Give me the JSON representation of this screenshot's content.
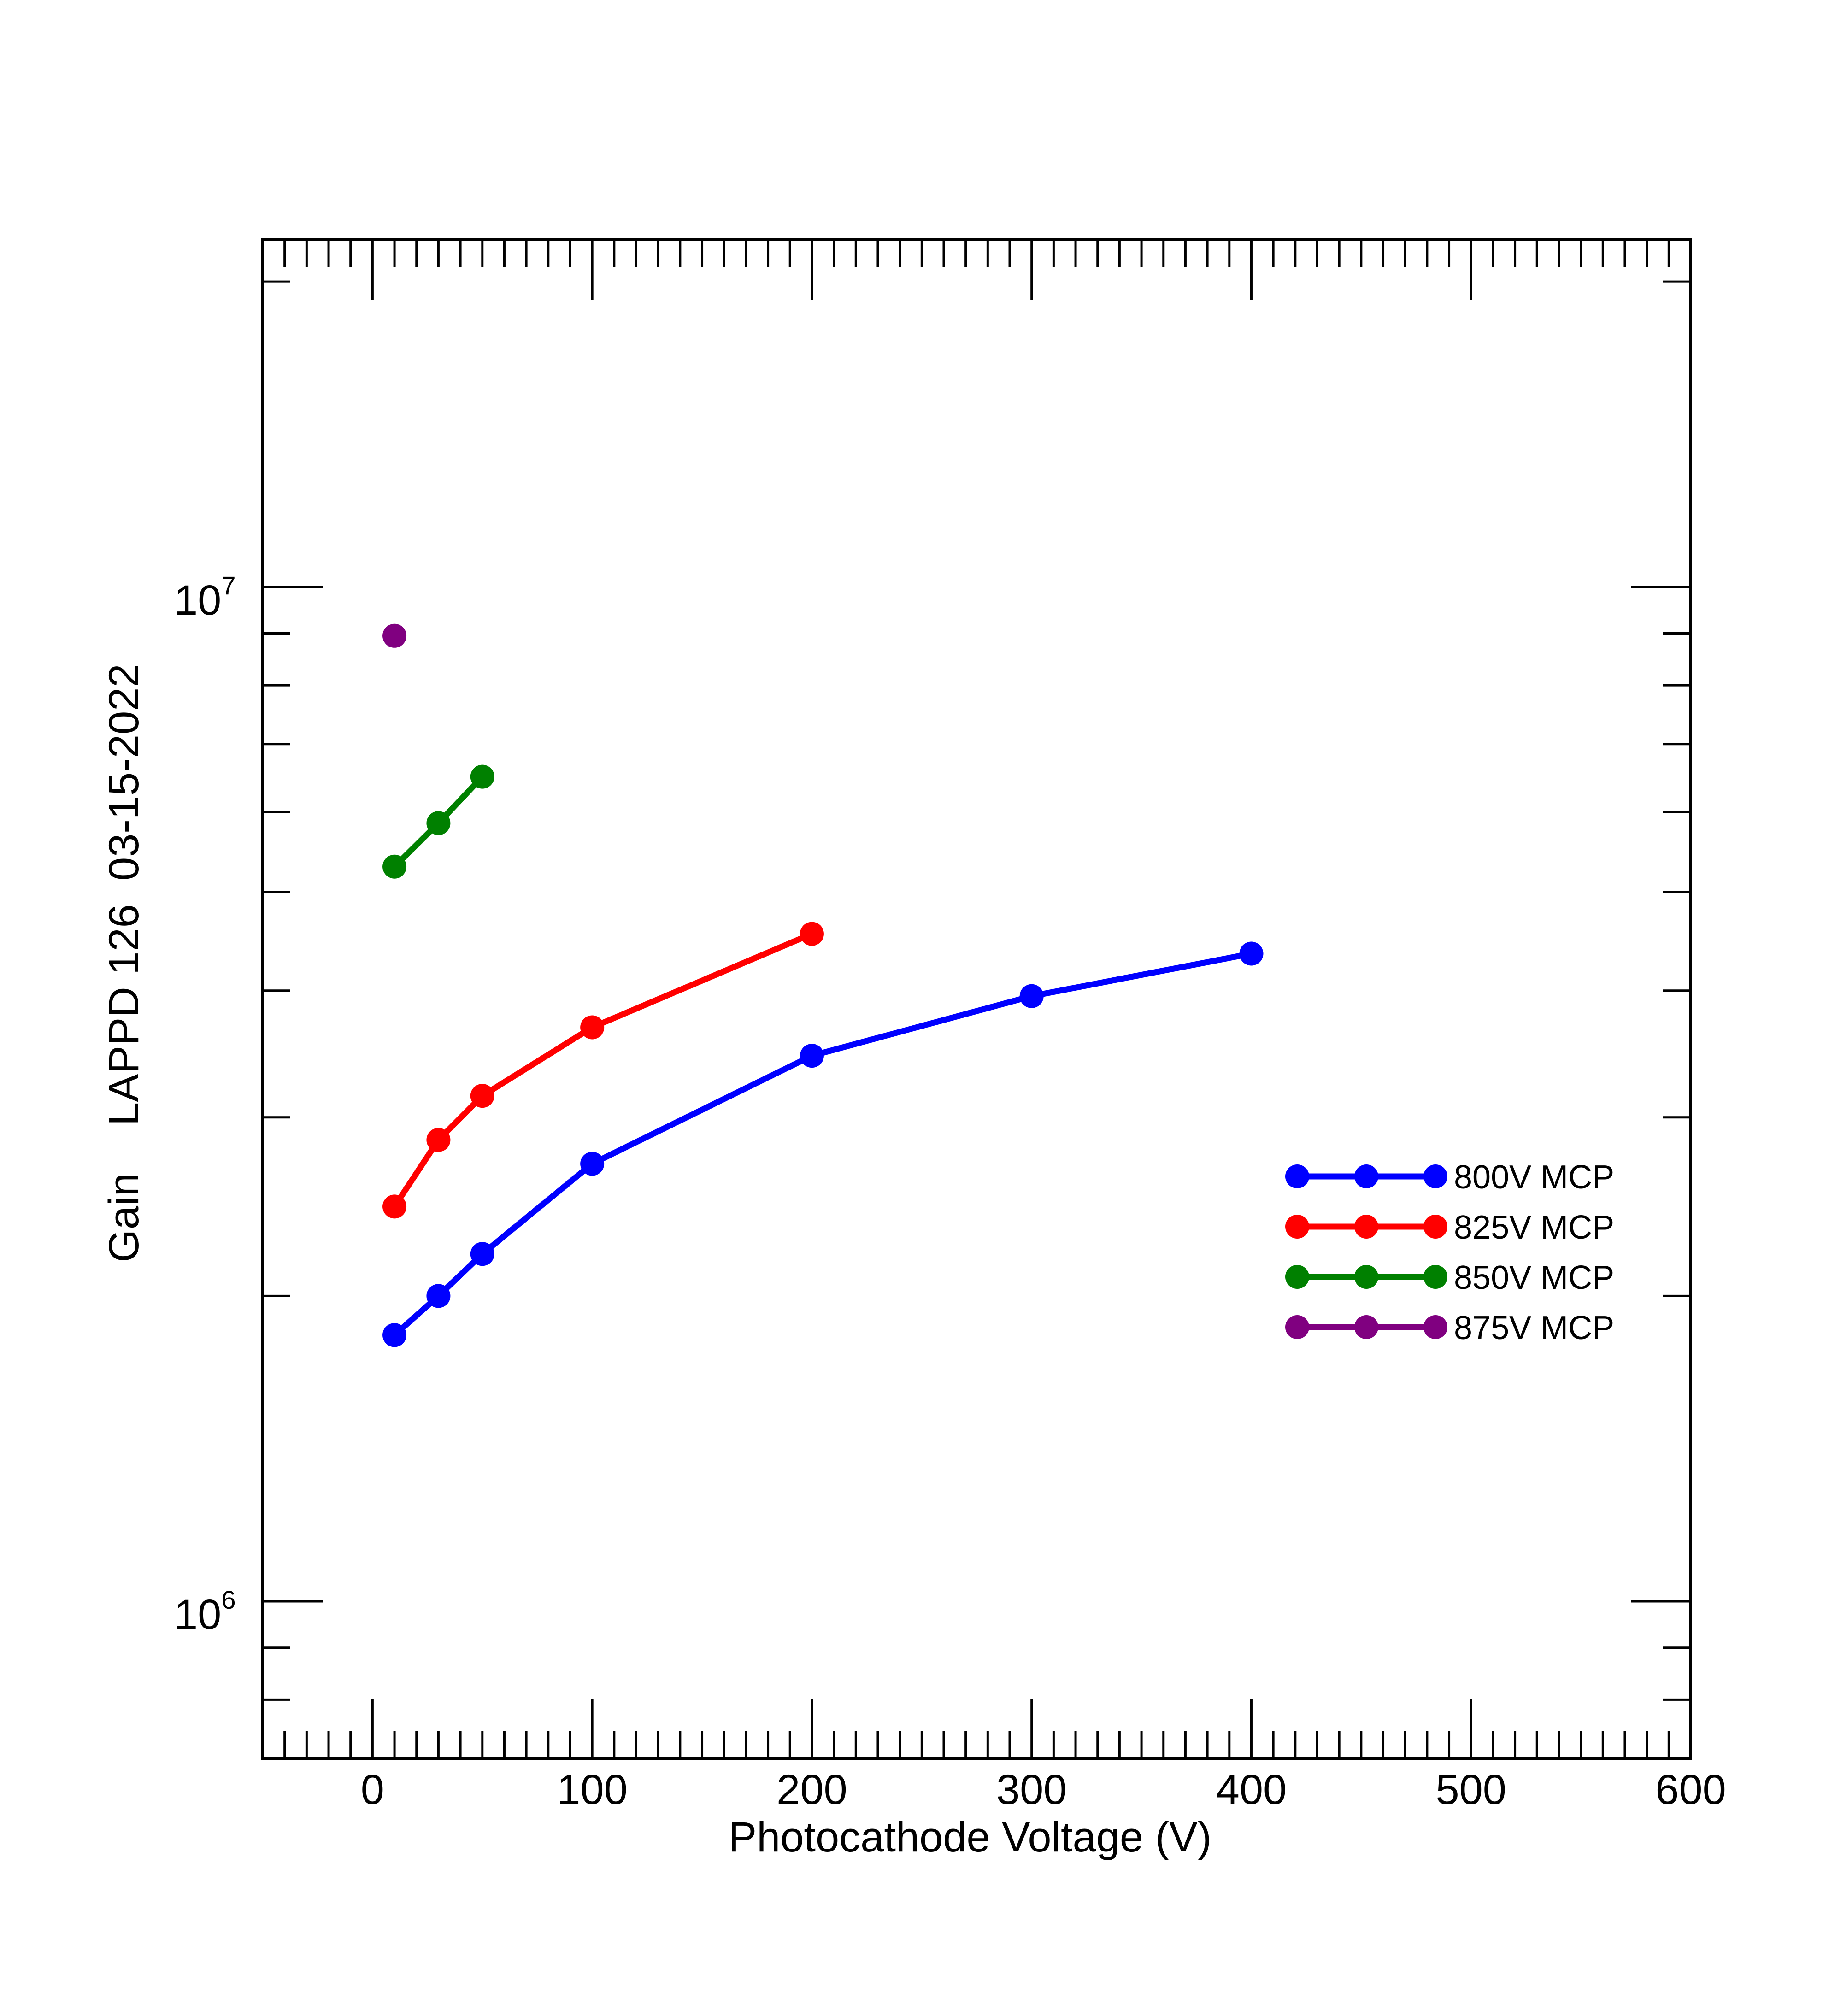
{
  "chart_data": {
    "type": "line",
    "title": "",
    "xlabel": "Photocathode Voltage (V)",
    "ylabel": "Gain    LAPPD 126  03-15-2022",
    "xlim": [
      -50,
      600
    ],
    "ylim": [
      700000,
      22000000
    ],
    "yscale": "log",
    "xticks": [
      0,
      100,
      200,
      300,
      400,
      500,
      600
    ],
    "xtick_labels": [
      "0",
      "100",
      "200",
      "300",
      "400",
      "500",
      "600"
    ],
    "ytick_labels": [
      {
        "value": 1000000,
        "base": "10",
        "exp": "6"
      },
      {
        "value": 10000000,
        "base": "10",
        "exp": "7"
      }
    ],
    "grid": false,
    "legend_position": "right",
    "series": [
      {
        "name": "800V MCP",
        "color": "#0000ff",
        "x": [
          10,
          30,
          50,
          100,
          200,
          300,
          400
        ],
        "y": [
          1830000,
          2000000,
          2200000,
          2700000,
          3450000,
          3950000,
          4350000
        ]
      },
      {
        "name": "825V MCP",
        "color": "#ff0000",
        "x": [
          10,
          30,
          50,
          100,
          200
        ],
        "y": [
          2450000,
          2850000,
          3150000,
          3680000,
          4550000
        ]
      },
      {
        "name": "850V MCP",
        "color": "#008000",
        "x": [
          10,
          30,
          50
        ],
        "y": [
          5300000,
          5850000,
          6500000
        ]
      },
      {
        "name": "875V MCP",
        "color": "#800080",
        "x": [
          10
        ],
        "y": [
          8950000
        ]
      }
    ]
  }
}
